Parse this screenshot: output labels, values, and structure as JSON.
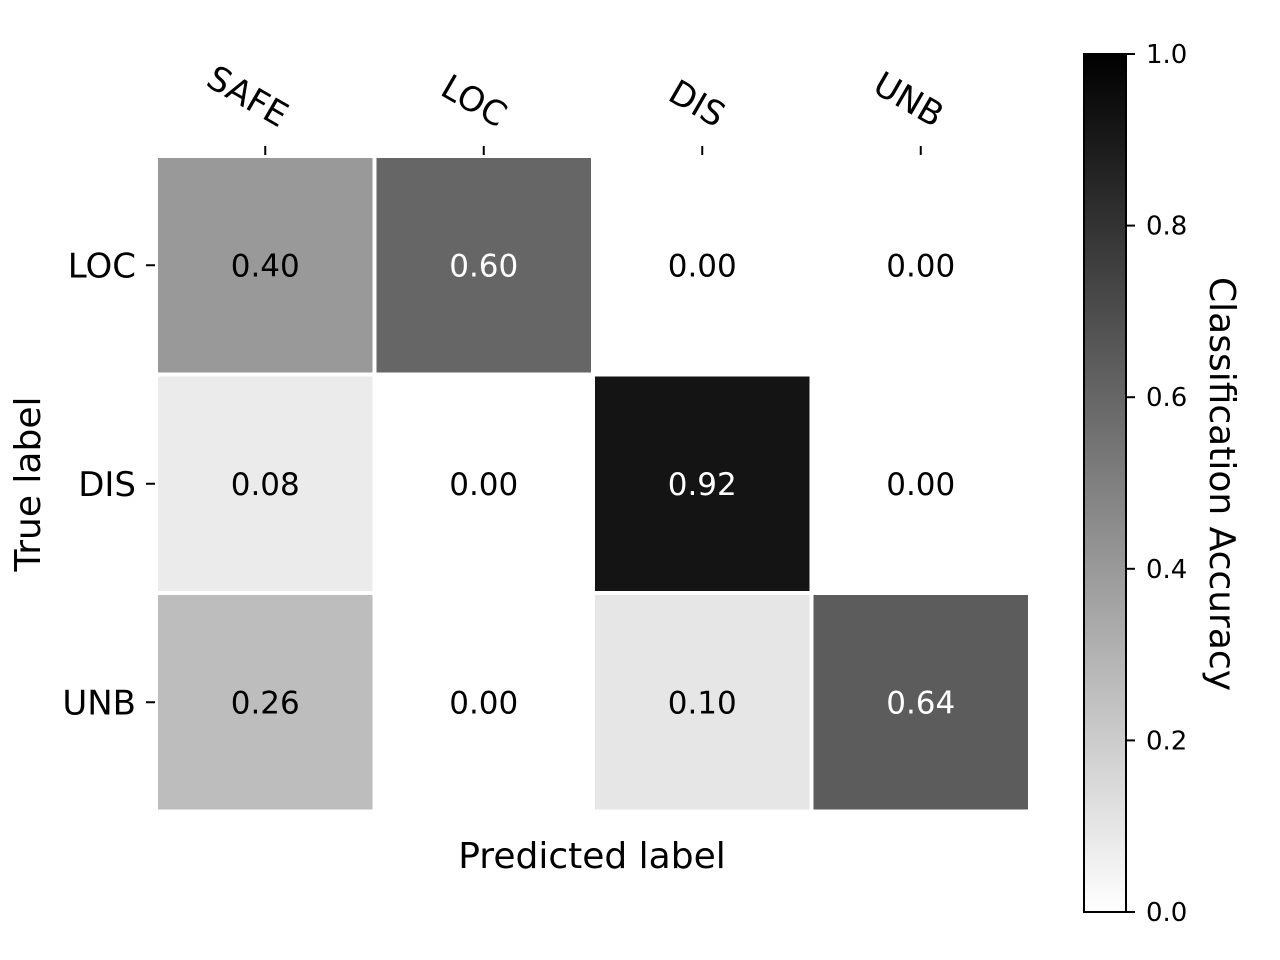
{
  "chart_data": {
    "type": "heatmap",
    "title": "",
    "xlabel": "Predicted label",
    "ylabel": "True label",
    "x_categories": [
      "SAFE",
      "LOC",
      "DIS",
      "UNB"
    ],
    "y_categories": [
      "LOC",
      "DIS",
      "UNB"
    ],
    "values": [
      [
        0.4,
        0.6,
        0.0,
        0.0
      ],
      [
        0.08,
        0.0,
        0.92,
        0.0
      ],
      [
        0.26,
        0.0,
        0.1,
        0.64
      ]
    ],
    "value_labels": [
      [
        "0.40",
        "0.60",
        "0.00",
        "0.00"
      ],
      [
        "0.08",
        "0.00",
        "0.92",
        "0.00"
      ],
      [
        "0.26",
        "0.00",
        "0.10",
        "0.64"
      ]
    ],
    "x_axis_position": "top",
    "colormap": "grayscale (white = 0.0, black = 1.0)",
    "colorbar": {
      "label": "Classification Accuracy",
      "range": [
        0.0,
        1.0
      ],
      "ticks": [
        "0.0",
        "0.2",
        "0.4",
        "0.6",
        "0.8",
        "1.0"
      ]
    },
    "grid": false
  }
}
